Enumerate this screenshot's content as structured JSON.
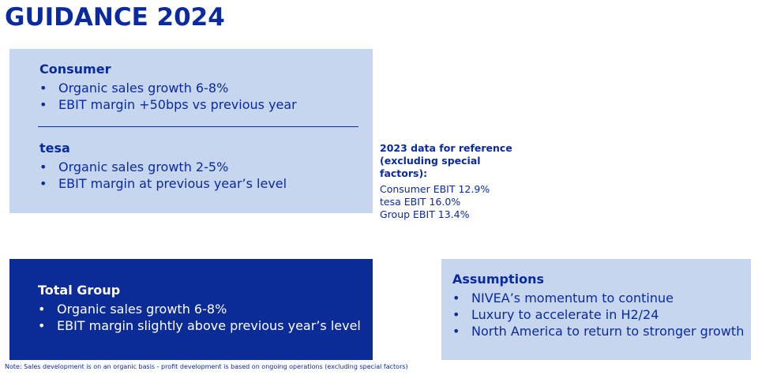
{
  "header": {
    "title": "GUIDANCE 2024"
  },
  "consumer": {
    "title": "Consumer",
    "items": [
      "Organic sales growth 6-8%",
      "EBIT margin +50bps vs previous year"
    ]
  },
  "tesa": {
    "title": "tesa",
    "items": [
      "Organic sales growth 2-5%",
      "EBIT margin at previous year’s level"
    ]
  },
  "reference": {
    "title": "2023 data for reference (excluding special factors):",
    "items": [
      "Consumer EBIT 12.9%",
      "tesa EBIT 16.0%",
      "Group EBIT 13.4%"
    ]
  },
  "group": {
    "title": "Total Group",
    "items": [
      "Organic sales growth 6-8%",
      "EBIT margin slightly above previous year’s level"
    ]
  },
  "assumptions": {
    "title": "Assumptions",
    "items": [
      "NIVEA’s momentum to continue",
      "Luxury to accelerate in H2/24",
      "North America to return to stronger growth"
    ]
  },
  "note": "Note: Sales development is on an organic basis - profit development is based on ongoing operations (excluding special factors)"
}
